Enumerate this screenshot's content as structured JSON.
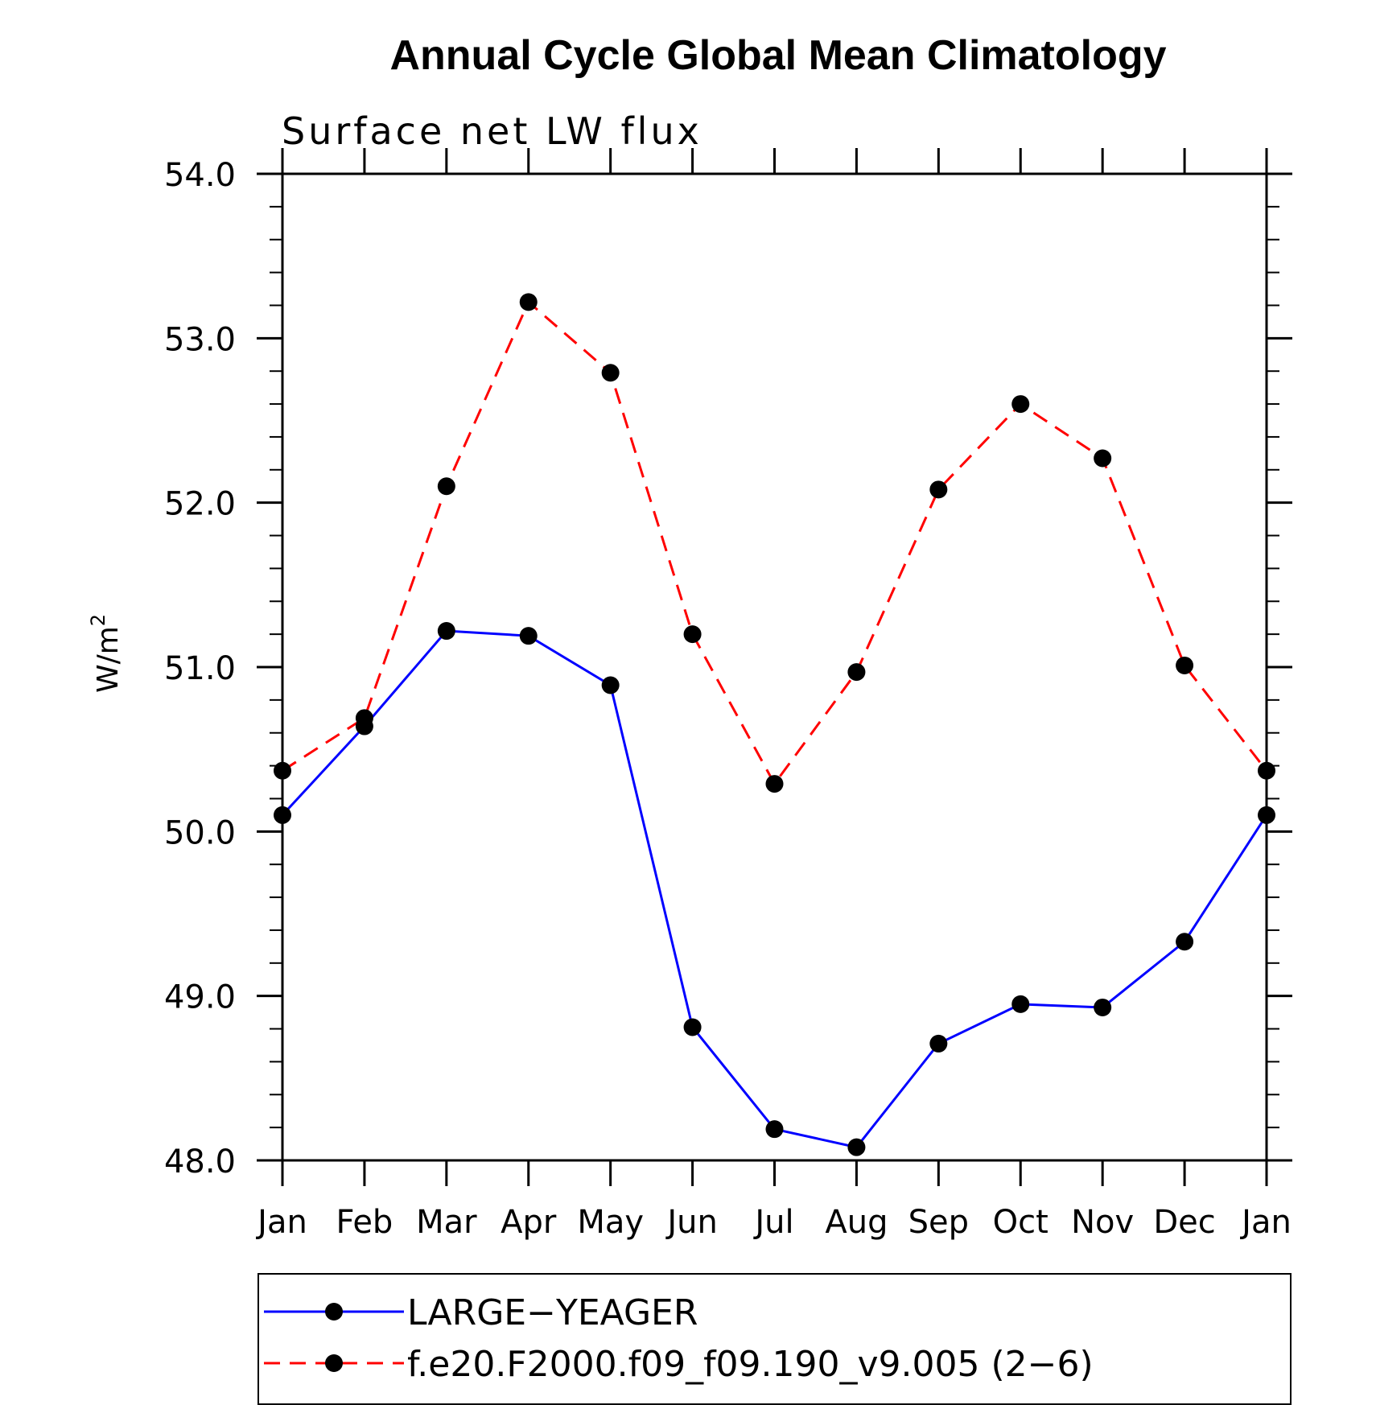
{
  "chart_data": {
    "type": "line",
    "title": "Annual Cycle Global Mean Climatology",
    "subtitle": "Surface net LW flux",
    "ylabel": "W/m",
    "ylabel_superscript": "2",
    "xlabel": "",
    "categories": [
      "Jan",
      "Feb",
      "Mar",
      "Apr",
      "May",
      "Jun",
      "Jul",
      "Aug",
      "Sep",
      "Oct",
      "Nov",
      "Dec",
      "Jan"
    ],
    "ylim": [
      48.0,
      54.0
    ],
    "yticks": [
      "48.0",
      "49.0",
      "50.0",
      "51.0",
      "52.0",
      "53.0",
      "54.0"
    ],
    "grid": false,
    "legend_position": "bottom",
    "series": [
      {
        "name": "LARGE−YEAGER",
        "color": "#0000ff",
        "line_style": "solid",
        "marker": "filled-circle",
        "values": [
          50.1,
          50.64,
          51.22,
          51.19,
          50.89,
          48.81,
          48.19,
          48.08,
          48.71,
          48.95,
          48.93,
          49.33,
          50.1
        ]
      },
      {
        "name": "f.e20.F2000.f09_f09.190_v9.005 (2−6)",
        "color": "#ff0000",
        "line_style": "dashed",
        "marker": "filled-circle",
        "values": [
          50.37,
          50.69,
          52.1,
          53.22,
          52.79,
          51.2,
          50.29,
          50.97,
          52.08,
          52.6,
          52.27,
          51.01,
          50.37
        ]
      }
    ]
  }
}
